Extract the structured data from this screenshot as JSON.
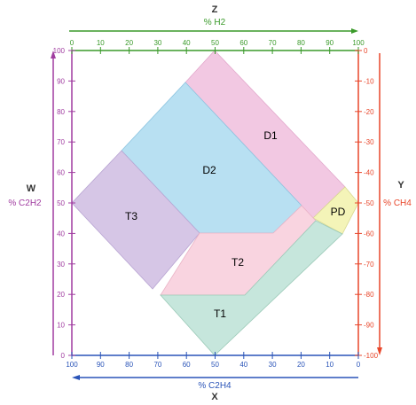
{
  "colors": {
    "green": "#3a9a2a",
    "purple": "#a03ca0",
    "red": "#e8462a",
    "blue": "#2a54b8",
    "frame": "#e0dcc0",
    "D1": "#f2c8e2",
    "D2": "#b8e0f2",
    "T3": "#d6c6e6",
    "T2": "#f9d4e0",
    "T1": "#c6e6dc",
    "PD": "#f4f4b8"
  },
  "axes": {
    "top": {
      "letter": "Z",
      "label": "% H2",
      "ticks": [
        "0",
        "10",
        "20",
        "30",
        "40",
        "50",
        "60",
        "70",
        "80",
        "90",
        "100"
      ]
    },
    "left": {
      "letter": "W",
      "label": "% C2H2",
      "ticks": [
        "0",
        "10",
        "20",
        "30",
        "40",
        "50",
        "60",
        "70",
        "80",
        "90",
        "100"
      ]
    },
    "right": {
      "letter": "Y",
      "label": "% CH4",
      "ticks": [
        "0",
        "-10",
        "-20",
        "-30",
        "-40",
        "-50",
        "-60",
        "-70",
        "-80",
        "-90",
        "-100"
      ]
    },
    "bottom": {
      "letter": "X",
      "label": "% C2H4",
      "ticks": [
        "100",
        "90",
        "80",
        "70",
        "60",
        "50",
        "40",
        "30",
        "20",
        "10",
        "0"
      ]
    }
  },
  "zones": [
    {
      "id": "D1",
      "label": "D1"
    },
    {
      "id": "D2",
      "label": "D2"
    },
    {
      "id": "T3",
      "label": "T3"
    },
    {
      "id": "T2",
      "label": "T2"
    },
    {
      "id": "T1",
      "label": "T1"
    },
    {
      "id": "PD",
      "label": "PD"
    }
  ]
}
